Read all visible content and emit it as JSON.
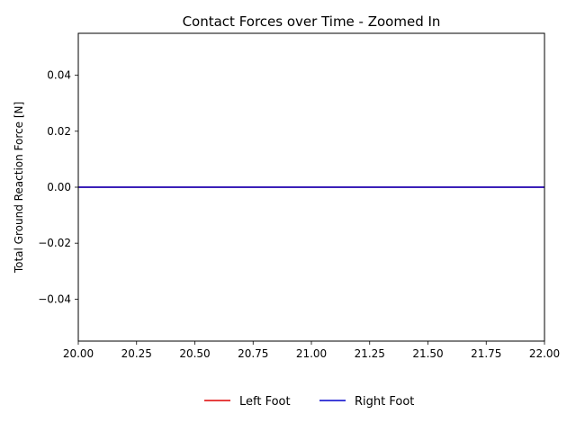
{
  "chart_data": {
    "type": "line",
    "title": "Contact Forces over Time - Zoomed In",
    "xlabel": "",
    "ylabel": "Total Ground Reaction Force [N]",
    "xlim": [
      20.0,
      22.0
    ],
    "ylim": [
      -0.055,
      0.055
    ],
    "xticks": [
      "20.00",
      "20.25",
      "20.50",
      "20.75",
      "21.00",
      "21.25",
      "21.50",
      "21.75",
      "22.00"
    ],
    "yticks": [
      "−0.04",
      "−0.02",
      "0.00",
      "0.02",
      "0.04"
    ],
    "grid": false,
    "legend_placement": "bottom-center",
    "series": [
      {
        "name": "Left Foot",
        "color": "#dd0000",
        "x": [
          20.0,
          22.0
        ],
        "y": [
          0.0,
          0.0
        ]
      },
      {
        "name": "Right Foot",
        "color": "#0000cc",
        "x": [
          20.0,
          22.0
        ],
        "y": [
          0.0,
          0.0
        ]
      }
    ]
  }
}
